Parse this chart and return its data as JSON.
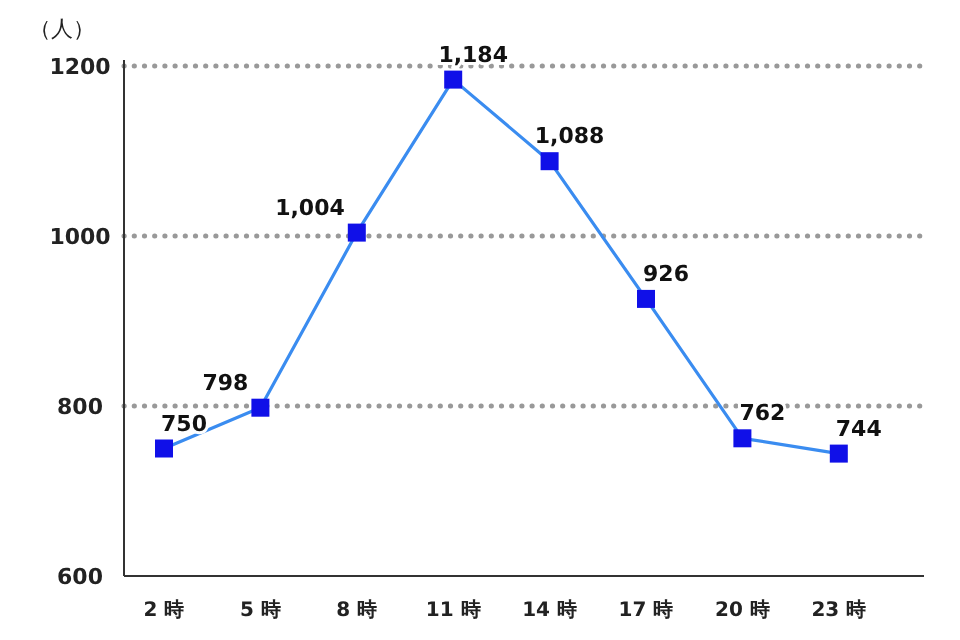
{
  "chart_data": {
    "type": "line",
    "ylabel": "（人）",
    "categories": [
      "2 時",
      "5 時",
      "8 時",
      "11 時",
      "14 時",
      "17 時",
      "20 時",
      "23 時"
    ],
    "series": [
      {
        "color": "#3a8cf0",
        "values": [
          750,
          798,
          1004,
          1184,
          1088,
          926,
          762,
          744
        ],
        "value_labels": [
          "750",
          "798",
          "1,004",
          "1,184",
          "1,088",
          "926",
          "762",
          "744"
        ]
      }
    ],
    "ylim": [
      600,
      1200
    ],
    "yticks": [
      600,
      800,
      1000,
      1200
    ],
    "grid": "y",
    "marker": "square",
    "line_style": "solid"
  }
}
